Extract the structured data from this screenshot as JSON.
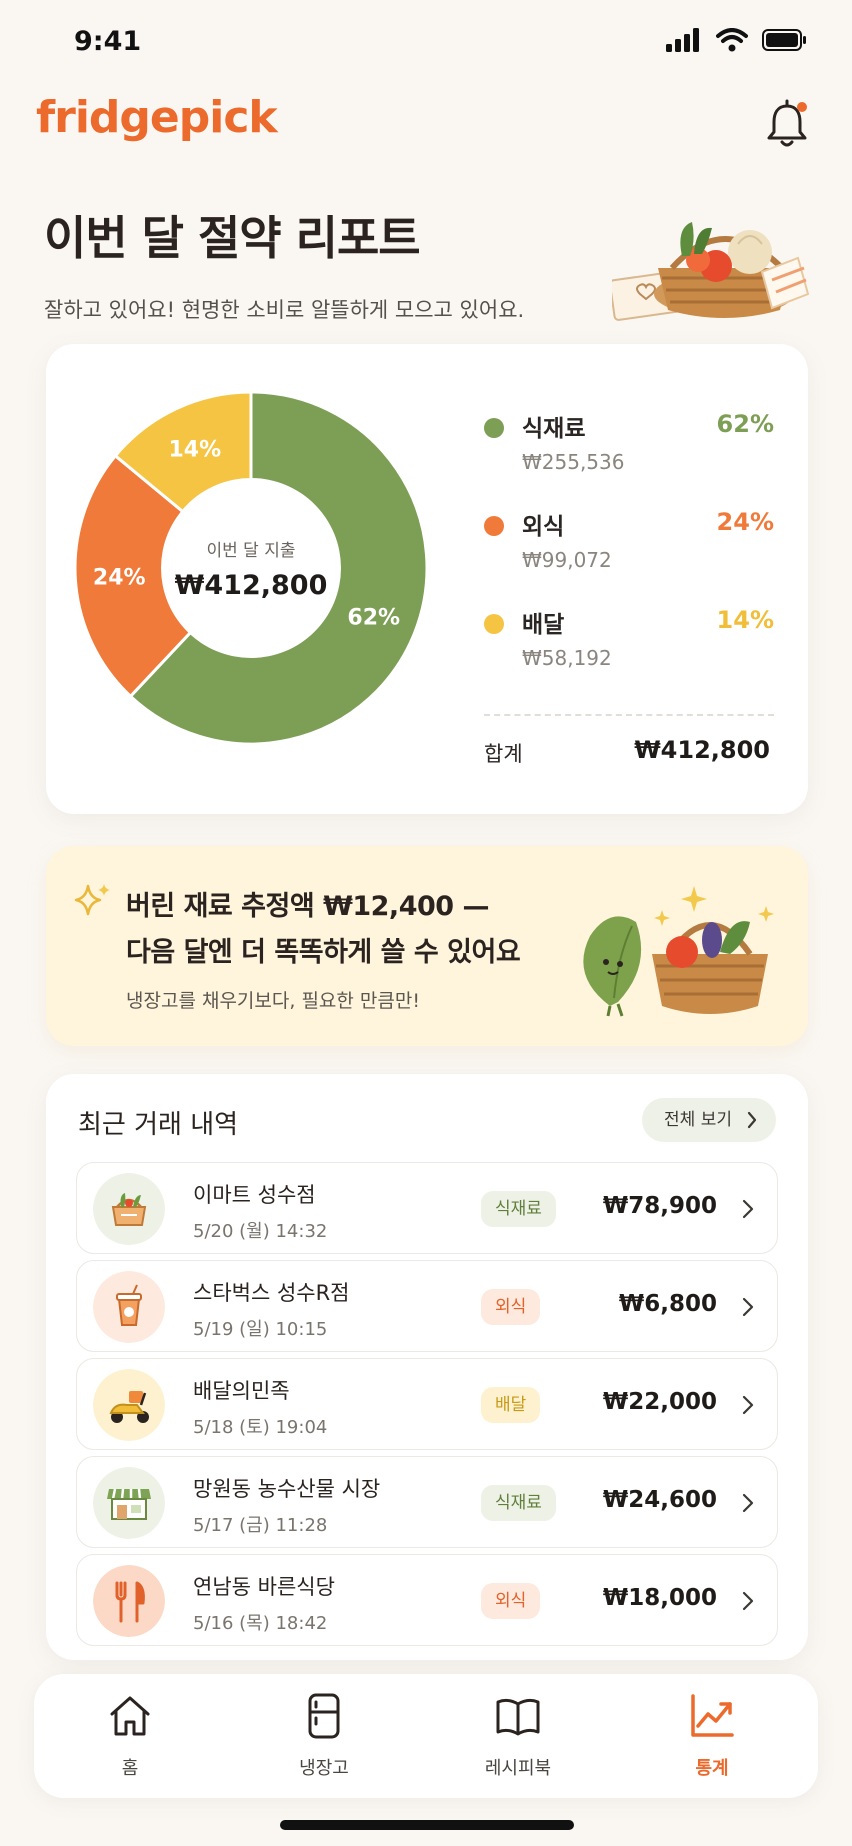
{
  "status_bar": {
    "time": "9:41"
  },
  "app": {
    "logo": "fridgepick",
    "notification_dot": true
  },
  "header": {
    "title": "이번 달 절약 리포트",
    "subtitle": "잘하고 있어요! 현명한 소비로 알뜰하게 모으고 있어요."
  },
  "summary": {
    "center_label": "이번 달 지출",
    "center_value": "₩412,800",
    "total_label": "합계",
    "total_value": "₩412,800",
    "legend": [
      {
        "label": "식재료",
        "amount": "₩255,536",
        "pct": "62%",
        "color": "#7d9e55"
      },
      {
        "label": "외식",
        "amount": "₩99,072",
        "pct": "24%",
        "color": "#f07a3a"
      },
      {
        "label": "배달",
        "amount": "₩58,192",
        "pct": "14%",
        "color": "#f6c443"
      }
    ]
  },
  "chart_data": {
    "type": "pie",
    "categories": [
      "식재료",
      "외식",
      "배달"
    ],
    "values": [
      62,
      24,
      14
    ],
    "colors": [
      "#7d9e55",
      "#f07a3a",
      "#f6c443"
    ],
    "labels": [
      "62%",
      "24%",
      "14%"
    ]
  },
  "tip": {
    "line1": "버린 재료 추정액 ₩12,400 —",
    "line2": "다음 달엔 더 똑똑하게 쓸 수 있어요",
    "sub": "냉장고를 채우기보다, 필요한 만큼만!"
  },
  "transactions": {
    "title": "최근 거래 내역",
    "view_all": "전체 보기",
    "items": [
      {
        "name": "이마트 성수점",
        "date": "5/20 (월) 14:32",
        "category": "식재료",
        "amount": "₩78,900",
        "icon": "grocery-basket-icon",
        "type": "grocery"
      },
      {
        "name": "스타벅스 성수R점",
        "date": "5/19 (일) 10:15",
        "category": "외식",
        "amount": "₩6,800",
        "icon": "coffee-cup-icon",
        "type": "dining"
      },
      {
        "name": "배달의민족",
        "date": "5/18 (토) 19:04",
        "category": "배달",
        "amount": "₩22,000",
        "icon": "scooter-icon",
        "type": "delivery"
      },
      {
        "name": "망원동 농수산물 시장",
        "date": "5/17 (금) 11:28",
        "category": "식재료",
        "amount": "₩24,600",
        "icon": "market-stall-icon",
        "type": "grocery"
      },
      {
        "name": "연남동 바른식당",
        "date": "5/16 (목) 18:42",
        "category": "외식",
        "amount": "₩18,000",
        "icon": "fork-knife-icon",
        "type": "dining"
      }
    ]
  },
  "tabs": [
    {
      "label": "홈",
      "icon": "home-icon",
      "active": false
    },
    {
      "label": "냉장고",
      "icon": "fridge-icon",
      "active": false
    },
    {
      "label": "레시피북",
      "icon": "book-icon",
      "active": false
    },
    {
      "label": "통계",
      "icon": "chart-icon",
      "active": true
    }
  ],
  "colors": {
    "accent": "#ec6a2c",
    "grocery": "#7d9e55",
    "dining": "#f07a3a",
    "delivery": "#f6c443"
  }
}
